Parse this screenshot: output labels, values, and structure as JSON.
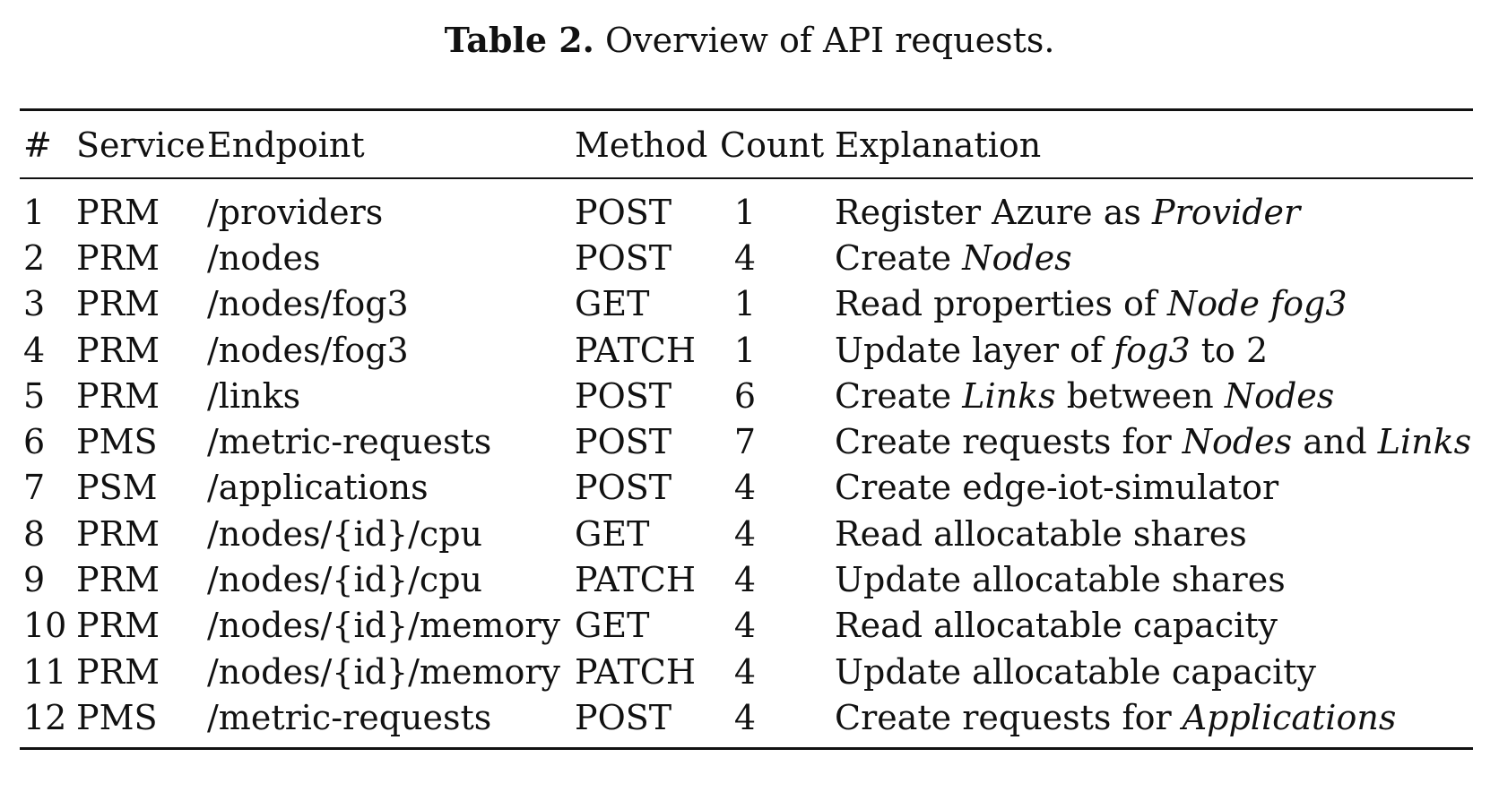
{
  "caption": {
    "label": "Table 2.",
    "text": "Overview of API requests."
  },
  "table": {
    "headers": [
      "#",
      "Service",
      "Endpoint",
      "Method",
      "Count",
      "Explanation"
    ],
    "rows": [
      {
        "num": "1",
        "service": "PRM",
        "endpoint": "/providers",
        "method": "POST",
        "count": "1",
        "explanation": [
          {
            "t": "Register Azure as "
          },
          {
            "t": "Provider",
            "i": true
          }
        ]
      },
      {
        "num": "2",
        "service": "PRM",
        "endpoint": "/nodes",
        "method": "POST",
        "count": "4",
        "explanation": [
          {
            "t": "Create "
          },
          {
            "t": "Nodes",
            "i": true
          }
        ]
      },
      {
        "num": "3",
        "service": "PRM",
        "endpoint": "/nodes/fog3",
        "method": "GET",
        "count": "1",
        "explanation": [
          {
            "t": "Read properties of "
          },
          {
            "t": "Node fog3",
            "i": true
          }
        ]
      },
      {
        "num": "4",
        "service": "PRM",
        "endpoint": "/nodes/fog3",
        "method": "PATCH",
        "count": "1",
        "explanation": [
          {
            "t": "Update layer of "
          },
          {
            "t": "fog3",
            "i": true
          },
          {
            "t": " to 2"
          }
        ]
      },
      {
        "num": "5",
        "service": "PRM",
        "endpoint": "/links",
        "method": "POST",
        "count": "6",
        "explanation": [
          {
            "t": "Create "
          },
          {
            "t": "Links",
            "i": true
          },
          {
            "t": " between "
          },
          {
            "t": "Nodes",
            "i": true
          }
        ]
      },
      {
        "num": "6",
        "service": "PMS",
        "endpoint": "/metric-requests",
        "method": "POST",
        "count": "7",
        "explanation": [
          {
            "t": "Create requests for "
          },
          {
            "t": "Nodes",
            "i": true
          },
          {
            "t": " and "
          },
          {
            "t": "Links",
            "i": true
          }
        ]
      },
      {
        "num": "7",
        "service": "PSM",
        "endpoint": "/applications",
        "method": "POST",
        "count": "4",
        "explanation": [
          {
            "t": "Create edge-iot-simulator"
          }
        ]
      },
      {
        "num": "8",
        "service": "PRM",
        "endpoint": "/nodes/{id}/cpu",
        "method": "GET",
        "count": "4",
        "explanation": [
          {
            "t": "Read allocatable shares"
          }
        ]
      },
      {
        "num": "9",
        "service": "PRM",
        "endpoint": "/nodes/{id}/cpu",
        "method": "PATCH",
        "count": "4",
        "explanation": [
          {
            "t": "Update allocatable shares"
          }
        ]
      },
      {
        "num": "10",
        "service": "PRM",
        "endpoint": "/nodes/{id}/memory",
        "method": "GET",
        "count": "4",
        "explanation": [
          {
            "t": "Read allocatable capacity"
          }
        ]
      },
      {
        "num": "11",
        "service": "PRM",
        "endpoint": "/nodes/{id}/memory",
        "method": "PATCH",
        "count": "4",
        "explanation": [
          {
            "t": "Update allocatable capacity"
          }
        ]
      },
      {
        "num": "12",
        "service": "PMS",
        "endpoint": "/metric-requests",
        "method": "POST",
        "count": "4",
        "explanation": [
          {
            "t": "Create requests for "
          },
          {
            "t": "Applications",
            "i": true
          }
        ]
      }
    ]
  }
}
